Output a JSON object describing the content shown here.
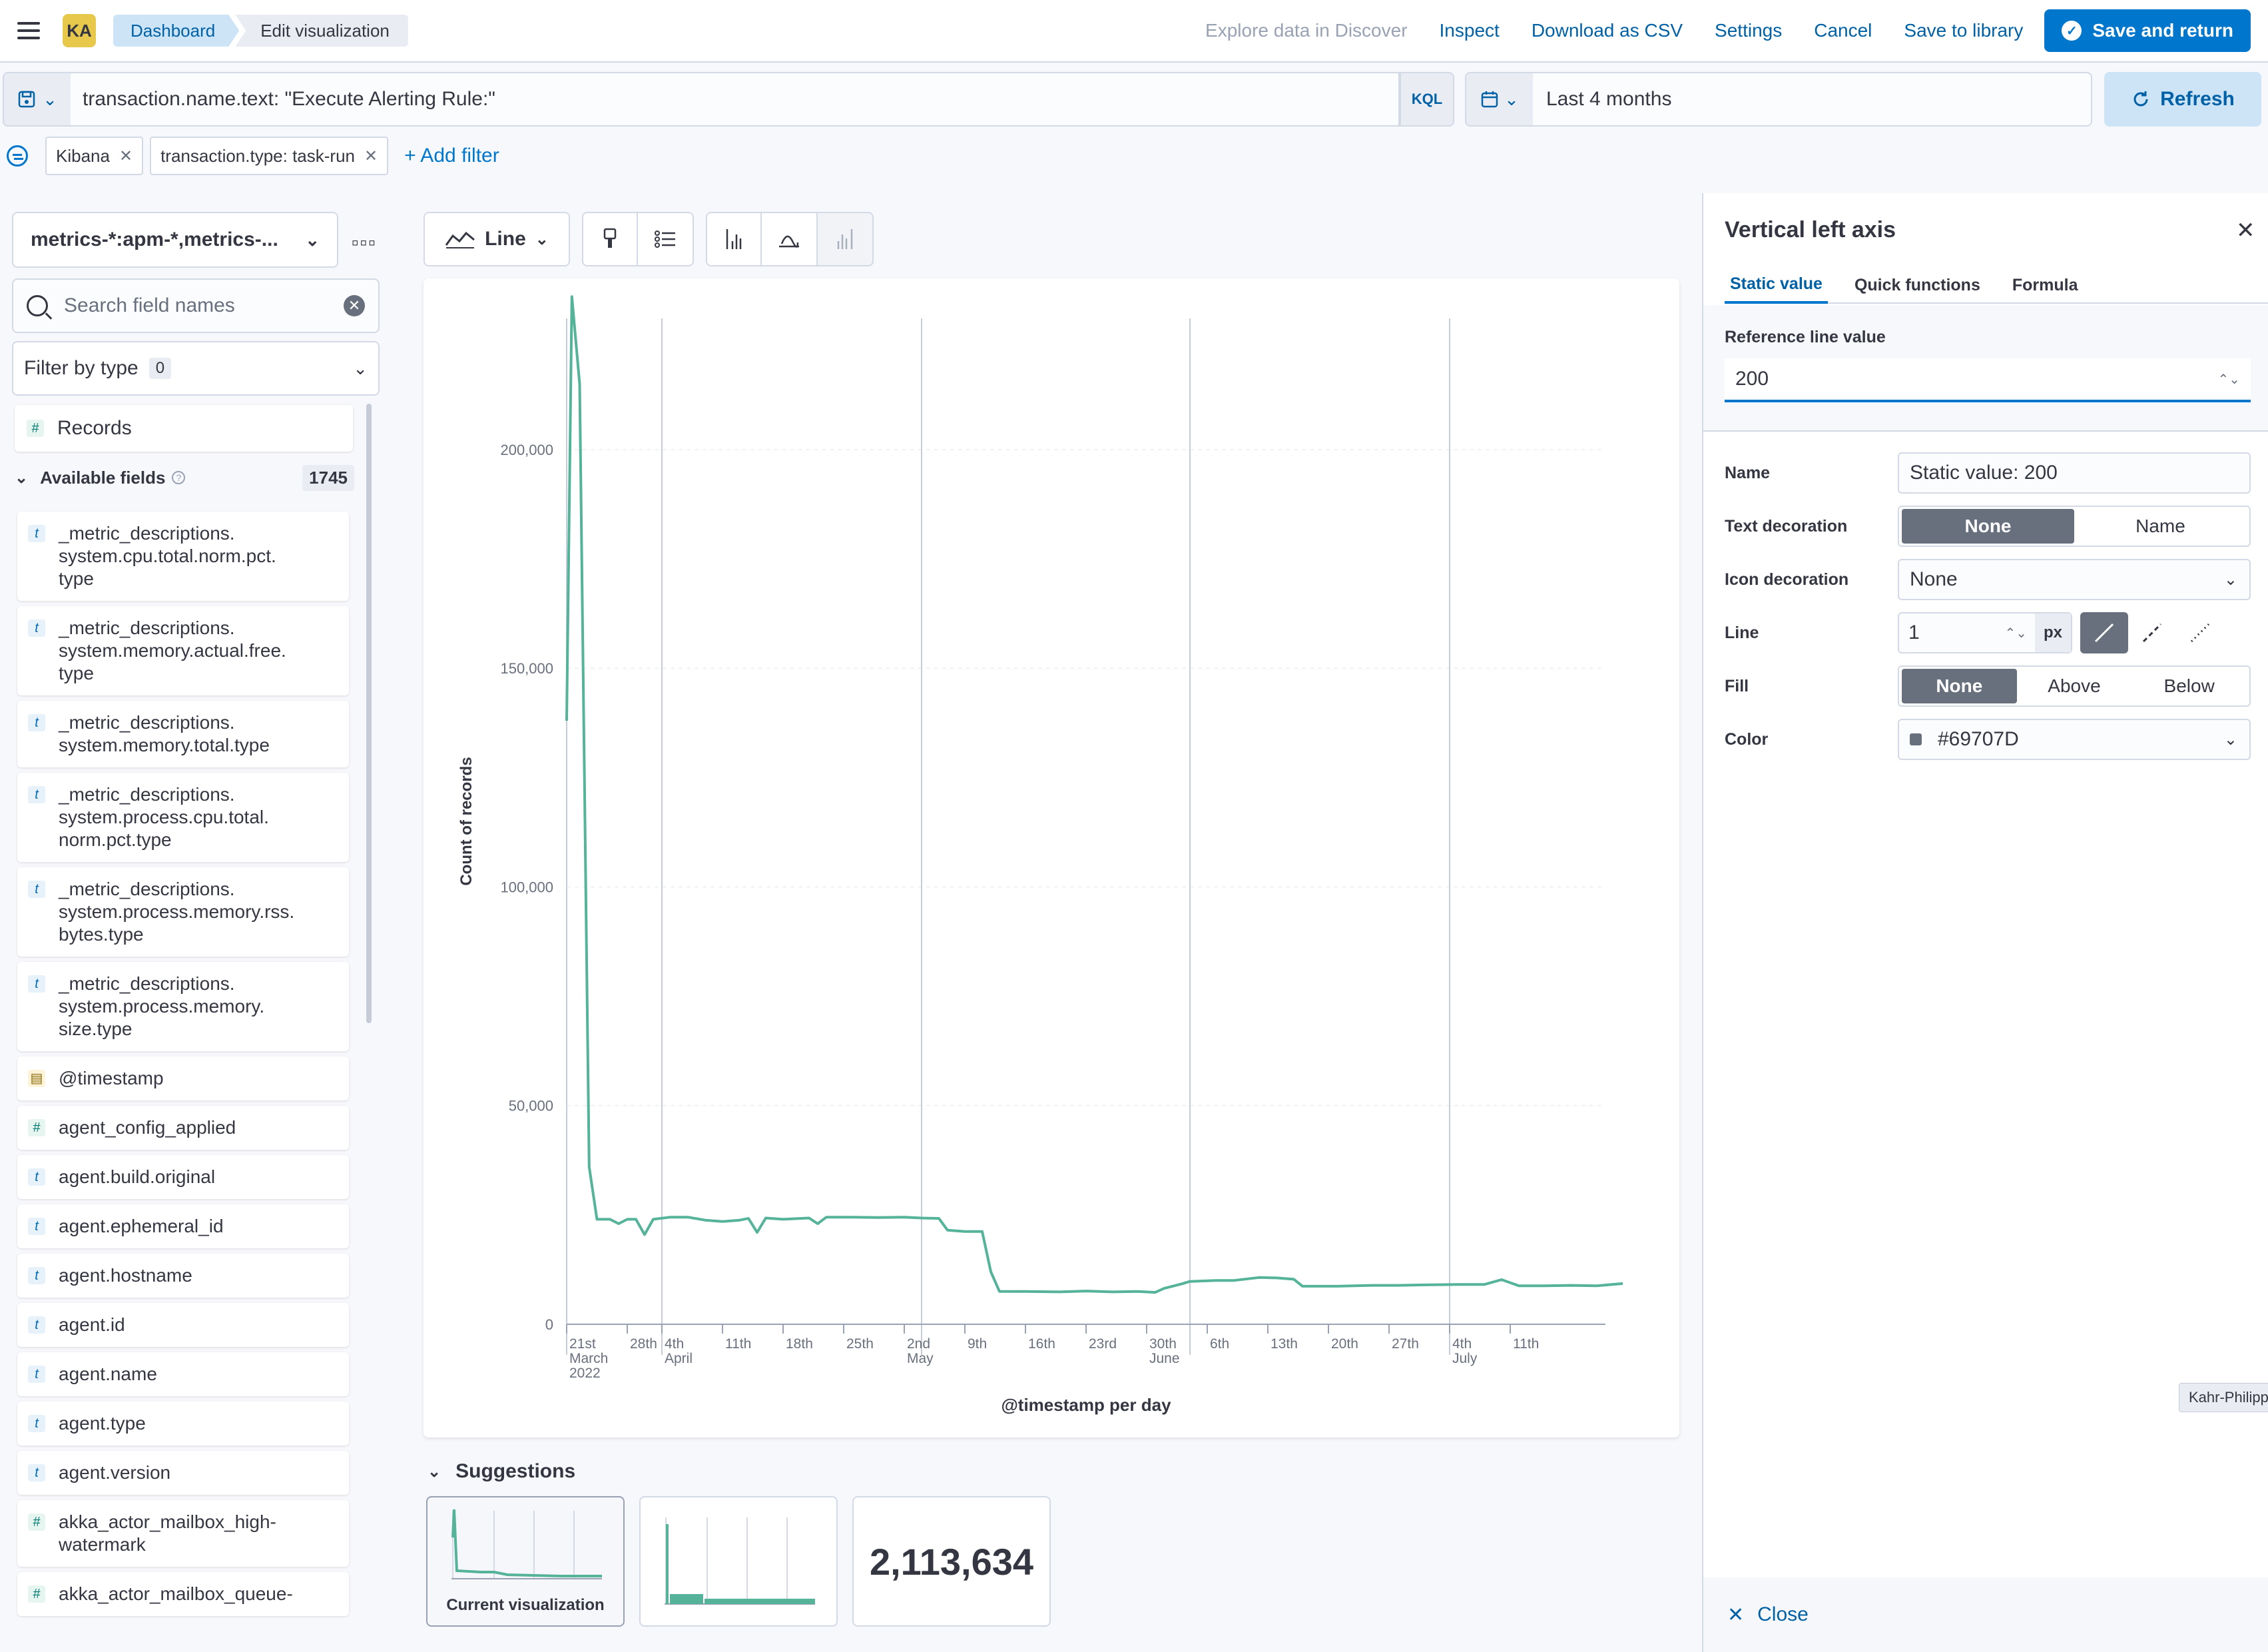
{
  "header": {
    "avatar_initials": "KA",
    "breadcrumbs": [
      "Dashboard",
      "Edit visualization"
    ],
    "actions": {
      "explore": "Explore data in Discover",
      "inspect": "Inspect",
      "download_csv": "Download as CSV",
      "settings": "Settings",
      "cancel": "Cancel",
      "save_library": "Save to library",
      "save_return": "Save and return"
    }
  },
  "query": {
    "text": "transaction.name.text: \"Execute Alerting Rule:\"",
    "language": "KQL",
    "date_range": "Last 4 months",
    "refresh_label": "Refresh"
  },
  "filters": {
    "pills": [
      "Kibana",
      "transaction.type: task-run"
    ],
    "add_label": "+ Add filter"
  },
  "data_panel": {
    "index_pattern": "metrics-*:apm-*,metrics-...",
    "search_placeholder": "Search field names",
    "filter_type_label": "Filter by type",
    "filter_type_count": "0",
    "records_label": "Records",
    "available_label": "Available fields",
    "available_count": "1745",
    "fields": [
      {
        "type": "t",
        "lines": [
          "_metric_descriptions.",
          "system.cpu.total.norm.pct.",
          "type"
        ]
      },
      {
        "type": "t",
        "lines": [
          "_metric_descriptions.",
          "system.memory.actual.free.",
          "type"
        ]
      },
      {
        "type": "t",
        "lines": [
          "_metric_descriptions.",
          "system.memory.total.type"
        ]
      },
      {
        "type": "t",
        "lines": [
          "_metric_descriptions.",
          "system.process.cpu.total.",
          "norm.pct.type"
        ]
      },
      {
        "type": "t",
        "lines": [
          "_metric_descriptions.",
          "system.process.memory.rss.",
          "bytes.type"
        ]
      },
      {
        "type": "t",
        "lines": [
          "_metric_descriptions.",
          "system.process.memory.",
          "size.type"
        ]
      },
      {
        "type": "date",
        "lines": [
          "@timestamp"
        ]
      },
      {
        "type": "#",
        "lines": [
          "agent_config_applied"
        ]
      },
      {
        "type": "t",
        "lines": [
          "agent.build.original"
        ]
      },
      {
        "type": "t",
        "lines": [
          "agent.ephemeral_id"
        ]
      },
      {
        "type": "t",
        "lines": [
          "agent.hostname"
        ]
      },
      {
        "type": "t",
        "lines": [
          "agent.id"
        ]
      },
      {
        "type": "t",
        "lines": [
          "agent.name"
        ]
      },
      {
        "type": "t",
        "lines": [
          "agent.type"
        ]
      },
      {
        "type": "t",
        "lines": [
          "agent.version"
        ]
      },
      {
        "type": "#",
        "lines": [
          "akka_actor_mailbox_high-",
          "watermark"
        ]
      },
      {
        "type": "#",
        "lines": [
          "akka_actor_mailbox_queue-"
        ]
      }
    ]
  },
  "toolbar": {
    "chart_type_label": "Line"
  },
  "chart_data": {
    "type": "line",
    "ylabel": "Count of records",
    "xlabel": "@timestamp per day",
    "ylim": [
      0,
      230000
    ],
    "yticks": [
      0,
      50000,
      100000,
      150000,
      200000
    ],
    "ytick_labels": [
      "0",
      "50,000",
      "100,000",
      "150,000",
      "200,000"
    ],
    "x_start_label": "2022-03-21",
    "xticks": [
      {
        "day": 0,
        "label": "21st",
        "sub": "March",
        "sub2": "2022"
      },
      {
        "day": 7,
        "label": "28th"
      },
      {
        "day": 11,
        "label": "4th",
        "sub": "April"
      },
      {
        "day": 18,
        "label": "11th"
      },
      {
        "day": 25,
        "label": "18th"
      },
      {
        "day": 32,
        "label": "25th"
      },
      {
        "day": 39,
        "label": "2nd",
        "sub": "May"
      },
      {
        "day": 46,
        "label": "9th"
      },
      {
        "day": 53,
        "label": "16th"
      },
      {
        "day": 60,
        "label": "23rd"
      },
      {
        "day": 67,
        "label": "30th",
        "sub": "June"
      },
      {
        "day": 74,
        "label": "6th"
      },
      {
        "day": 81,
        "label": "13th"
      },
      {
        "day": 88,
        "label": "20th"
      },
      {
        "day": 95,
        "label": "27th"
      },
      {
        "day": 102,
        "label": "4th",
        "sub": "July"
      },
      {
        "day": 109,
        "label": "11th"
      }
    ],
    "month_lines": [
      11,
      41,
      72,
      102
    ],
    "x_days": 120,
    "series": [
      {
        "color": "#54b399",
        "points": [
          [
            0,
            138000
          ],
          [
            0.6,
            235000
          ],
          [
            1.5,
            215000
          ],
          [
            2.6,
            36000
          ],
          [
            3.5,
            24000
          ],
          [
            5,
            24000
          ],
          [
            6,
            23000
          ],
          [
            7,
            24000
          ],
          [
            8,
            24000
          ],
          [
            9,
            20500
          ],
          [
            10,
            24000
          ],
          [
            12,
            24500
          ],
          [
            14,
            24500
          ],
          [
            16,
            23800
          ],
          [
            18,
            23500
          ],
          [
            20,
            23800
          ],
          [
            21,
            24200
          ],
          [
            22,
            21000
          ],
          [
            23,
            24300
          ],
          [
            25,
            24000
          ],
          [
            27,
            24200
          ],
          [
            28,
            24300
          ],
          [
            29,
            23000
          ],
          [
            30,
            24500
          ],
          [
            33,
            24500
          ],
          [
            36,
            24400
          ],
          [
            39,
            24500
          ],
          [
            41,
            24300
          ],
          [
            43,
            24200
          ],
          [
            44,
            21500
          ],
          [
            46,
            21200
          ],
          [
            48,
            21200
          ],
          [
            49,
            12000
          ],
          [
            50,
            7500
          ],
          [
            53,
            7500
          ],
          [
            57,
            7400
          ],
          [
            60,
            7600
          ],
          [
            63,
            7400
          ],
          [
            66,
            7500
          ],
          [
            68,
            7300
          ],
          [
            69,
            8200
          ],
          [
            71,
            9200
          ],
          [
            72,
            9800
          ],
          [
            75,
            10000
          ],
          [
            77,
            10000
          ],
          [
            80,
            10700
          ],
          [
            82,
            10600
          ],
          [
            84,
            10300
          ],
          [
            85,
            8700
          ],
          [
            89,
            8700
          ],
          [
            93,
            8900
          ],
          [
            96,
            8900
          ],
          [
            99,
            9000
          ],
          [
            103,
            9100
          ],
          [
            106,
            9100
          ],
          [
            108,
            10200
          ],
          [
            110,
            8800
          ],
          [
            113,
            8800
          ],
          [
            116,
            8900
          ],
          [
            119,
            8800
          ],
          [
            122,
            9300
          ]
        ]
      }
    ]
  },
  "suggestions": {
    "title": "Suggestions",
    "current_label": "Current visualization",
    "metric_value": "2,113,634"
  },
  "flyout": {
    "title": "Vertical left axis",
    "tabs": [
      "Static value",
      "Quick functions",
      "Formula"
    ],
    "ref_label": "Reference line value",
    "ref_value": "200",
    "name_label": "Name",
    "name_value": "Static value: 200",
    "text_dec_label": "Text decoration",
    "text_dec_options": [
      "None",
      "Name"
    ],
    "icon_dec_label": "Icon decoration",
    "icon_dec_value": "None",
    "line_label": "Line",
    "line_width": "1",
    "line_unit": "px",
    "fill_label": "Fill",
    "fill_options": [
      "None",
      "Above",
      "Below"
    ],
    "color_label": "Color",
    "color_value": "#69707D",
    "close_label": "Close"
  },
  "tooltip_text": "Kahr-Philipp"
}
